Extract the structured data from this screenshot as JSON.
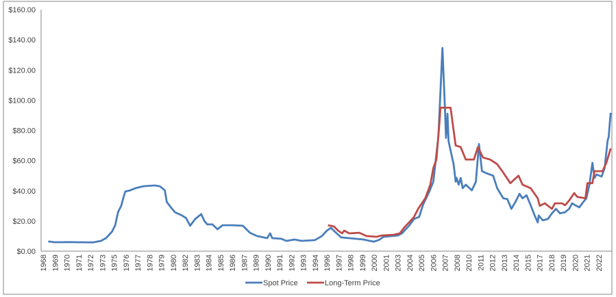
{
  "chart_data": {
    "type": "line",
    "title": "",
    "xlabel": "",
    "ylabel": "",
    "ylim": [
      0,
      160
    ],
    "yticks": [
      "$0.00",
      "$20.00",
      "$40.00",
      "$60.00",
      "$80.00",
      "$100.00",
      "$120.00",
      "$140.00",
      "$160.00"
    ],
    "xticks": [
      "1968",
      "1969",
      "1970",
      "1971",
      "1972",
      "1973",
      "1975",
      "1976",
      "1977",
      "1978",
      "1979",
      "1980",
      "1982",
      "1983",
      "1984",
      "1985",
      "1986",
      "1987",
      "1989",
      "1990",
      "1991",
      "1992",
      "1993",
      "1994",
      "1996",
      "1997",
      "1998",
      "1999",
      "2000",
      "2001",
      "2003",
      "2004",
      "2005",
      "2006",
      "2007",
      "2008",
      "2010",
      "2011",
      "2012",
      "2013",
      "2014",
      "2015",
      "2017",
      "2018",
      "2019",
      "2020",
      "2021",
      "2022"
    ],
    "grid": false,
    "legend_position": "bottom",
    "series": [
      {
        "name": "Spot Price",
        "color": "#4a7ebb",
        "points": [
          [
            1968.5,
            6.5
          ],
          [
            1969.1,
            5.9
          ],
          [
            1970.5,
            6.0
          ],
          [
            1972.9,
            5.8
          ],
          [
            1973.7,
            6.8
          ],
          [
            1974.2,
            8.6
          ],
          [
            1974.8,
            13
          ],
          [
            1975.1,
            17
          ],
          [
            1975.4,
            26
          ],
          [
            1975.7,
            30
          ],
          [
            1975.9,
            35
          ],
          [
            1976.1,
            39.5
          ],
          [
            1976.6,
            40.3
          ],
          [
            1977.1,
            41.7
          ],
          [
            1977.9,
            43
          ],
          [
            1979.0,
            43.5
          ],
          [
            1979.5,
            43
          ],
          [
            1980.0,
            40.3
          ],
          [
            1980.2,
            32.6
          ],
          [
            1980.6,
            29
          ],
          [
            1981.0,
            25.8
          ],
          [
            1981.7,
            23.6
          ],
          [
            1982.1,
            22
          ],
          [
            1982.5,
            16.8
          ],
          [
            1983.0,
            21.3
          ],
          [
            1983.6,
            24.5
          ],
          [
            1983.9,
            20
          ],
          [
            1984.2,
            17.7
          ],
          [
            1984.7,
            17.7
          ],
          [
            1985.2,
            14.5
          ],
          [
            1985.7,
            17.2
          ],
          [
            1986.7,
            17.2
          ],
          [
            1987.7,
            16.8
          ],
          [
            1988.4,
            12.2
          ],
          [
            1989.1,
            10
          ],
          [
            1990.1,
            8.6
          ],
          [
            1990.4,
            11.8
          ],
          [
            1990.6,
            8.6
          ],
          [
            1991.5,
            8.2
          ],
          [
            1992.0,
            6.8
          ],
          [
            1992.8,
            7.7
          ],
          [
            1993.5,
            6.8
          ],
          [
            1994.8,
            7.3
          ],
          [
            1995.5,
            10
          ],
          [
            1996.0,
            13.6
          ],
          [
            1996.4,
            15.4
          ],
          [
            1996.9,
            12.2
          ],
          [
            1997.4,
            9.1
          ],
          [
            1998.2,
            8.6
          ],
          [
            1999.6,
            7.7
          ],
          [
            2000.6,
            6.3
          ],
          [
            2001.1,
            7.3
          ],
          [
            2001.6,
            9.5
          ],
          [
            2003.0,
            10.4
          ],
          [
            2003.4,
            11.8
          ],
          [
            2004.1,
            16.8
          ],
          [
            2004.6,
            21.3
          ],
          [
            2005.1,
            22.7
          ],
          [
            2005.5,
            31
          ],
          [
            2006.1,
            39.4
          ],
          [
            2006.5,
            46
          ],
          [
            2007.0,
            76
          ],
          [
            2007.4,
            134.6
          ],
          [
            2007.65,
            94
          ],
          [
            2007.75,
            75
          ],
          [
            2007.9,
            91
          ],
          [
            2008.0,
            73
          ],
          [
            2008.2,
            66.6
          ],
          [
            2008.5,
            57.6
          ],
          [
            2008.7,
            46
          ],
          [
            2008.8,
            48.5
          ],
          [
            2009.0,
            44
          ],
          [
            2009.2,
            48.5
          ],
          [
            2009.4,
            41.7
          ],
          [
            2009.7,
            44
          ],
          [
            2010.3,
            40.3
          ],
          [
            2010.7,
            46
          ],
          [
            2011.0,
            71
          ],
          [
            2011.3,
            53
          ],
          [
            2011.7,
            51.7
          ],
          [
            2012.4,
            50
          ],
          [
            2012.8,
            41.7
          ],
          [
            2013.4,
            35
          ],
          [
            2013.8,
            34.5
          ],
          [
            2014.2,
            28
          ],
          [
            2014.6,
            32.6
          ],
          [
            2015.0,
            38
          ],
          [
            2015.3,
            35
          ],
          [
            2015.7,
            37
          ],
          [
            2016.1,
            30.4
          ],
          [
            2016.5,
            23.6
          ],
          [
            2016.8,
            19
          ],
          [
            2016.9,
            23.6
          ],
          [
            2017.3,
            20.4
          ],
          [
            2017.8,
            21.3
          ],
          [
            2018.2,
            25
          ],
          [
            2018.6,
            28
          ],
          [
            2019.0,
            25
          ],
          [
            2019.5,
            25.8
          ],
          [
            2019.9,
            28
          ],
          [
            2020.2,
            31.7
          ],
          [
            2020.5,
            30.4
          ],
          [
            2020.9,
            29
          ],
          [
            2021.3,
            32.6
          ],
          [
            2021.6,
            35
          ],
          [
            2021.9,
            44
          ],
          [
            2022.2,
            58.5
          ],
          [
            2022.4,
            48.5
          ],
          [
            2022.6,
            50.8
          ],
          [
            2023.1,
            49.4
          ],
          [
            2023.4,
            55
          ],
          [
            2023.7,
            73.4
          ],
          [
            2023.8,
            75.7
          ],
          [
            2024.0,
            91.6
          ]
        ]
      },
      {
        "name": "Long-Term Price",
        "color": "#be4b48",
        "points": [
          [
            1996.1,
            17.2
          ],
          [
            1996.7,
            16.3
          ],
          [
            1997.1,
            13.6
          ],
          [
            1997.5,
            11.8
          ],
          [
            1997.7,
            13.6
          ],
          [
            1998.2,
            11.8
          ],
          [
            1999.2,
            12.2
          ],
          [
            1999.9,
            10
          ],
          [
            2000.9,
            9.5
          ],
          [
            2001.4,
            10.4
          ],
          [
            2002.6,
            10.9
          ],
          [
            2003.2,
            11.8
          ],
          [
            2003.6,
            15.4
          ],
          [
            2004.1,
            19
          ],
          [
            2004.6,
            22.7
          ],
          [
            2005.0,
            28
          ],
          [
            2005.7,
            35
          ],
          [
            2006.2,
            44
          ],
          [
            2006.5,
            55
          ],
          [
            2006.8,
            60.7
          ],
          [
            2007.1,
            85
          ],
          [
            2007.2,
            95
          ],
          [
            2008.2,
            95
          ],
          [
            2008.5,
            80
          ],
          [
            2008.7,
            70
          ],
          [
            2009.2,
            69
          ],
          [
            2009.7,
            60.7
          ],
          [
            2010.5,
            60.7
          ],
          [
            2010.9,
            69
          ],
          [
            2011.4,
            62
          ],
          [
            2012.1,
            60.7
          ],
          [
            2012.8,
            57.6
          ],
          [
            2013.4,
            52
          ],
          [
            2014.1,
            45
          ],
          [
            2014.9,
            50
          ],
          [
            2015.3,
            44
          ],
          [
            2016.1,
            41.7
          ],
          [
            2016.8,
            35
          ],
          [
            2017.0,
            30
          ],
          [
            2017.5,
            31.7
          ],
          [
            2018.2,
            28
          ],
          [
            2018.5,
            31.7
          ],
          [
            2019.2,
            31.7
          ],
          [
            2019.5,
            30.4
          ],
          [
            2019.9,
            33.5
          ],
          [
            2020.4,
            38.5
          ],
          [
            2020.7,
            36
          ],
          [
            2021.5,
            35
          ],
          [
            2021.7,
            45
          ],
          [
            2022.2,
            45
          ],
          [
            2022.4,
            53
          ],
          [
            2023.2,
            53
          ],
          [
            2023.6,
            59
          ],
          [
            2024.0,
            68
          ]
        ]
      }
    ]
  }
}
